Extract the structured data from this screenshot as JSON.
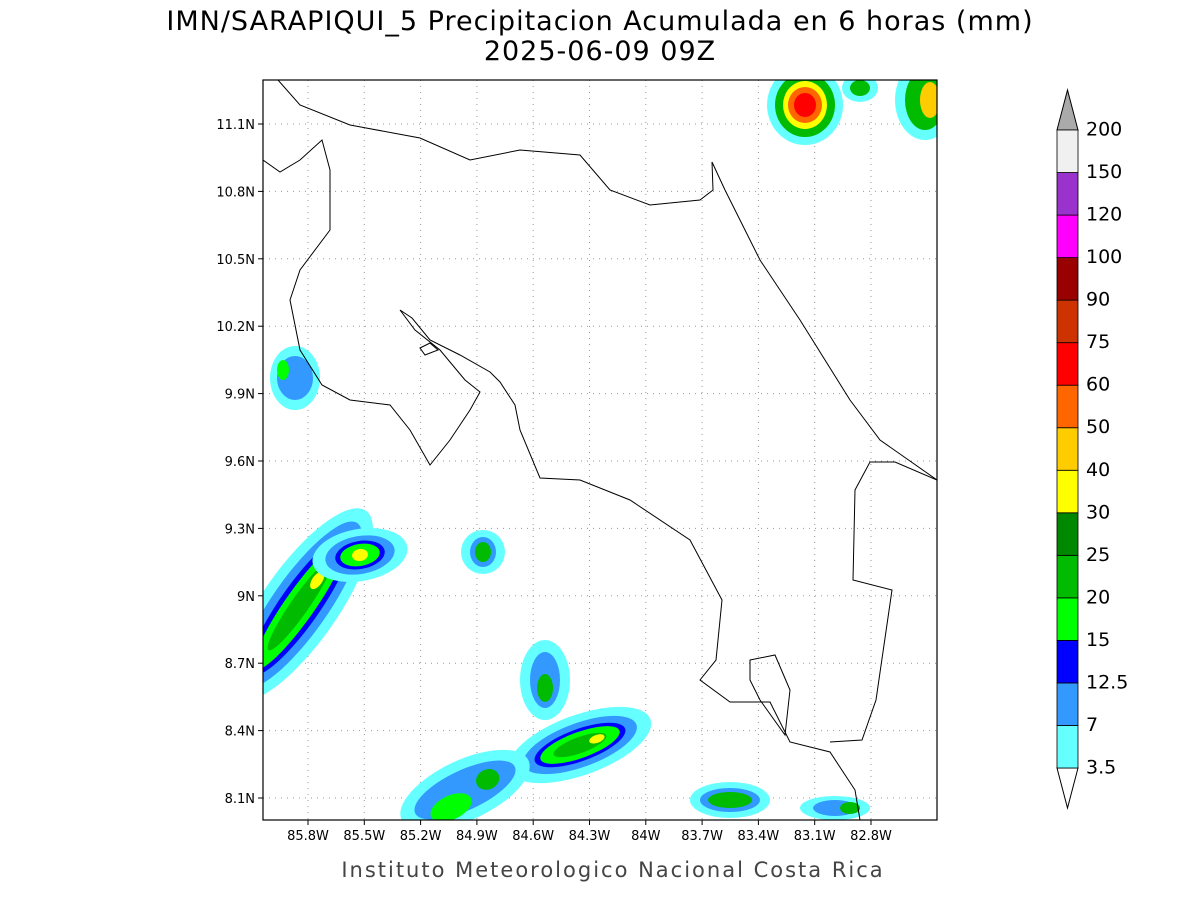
{
  "header": {
    "title": "IMN/SARAPIQUI_5 Precipitacion Acumulada en 6 horas (mm)",
    "subtitle": "2025-06-09 09Z"
  },
  "map": {
    "x_tick_labels": [
      "85.8W",
      "85.5W",
      "85.2W",
      "84.9W",
      "84.6W",
      "84.3W",
      "84W",
      "83.7W",
      "83.4W",
      "83.1W",
      "82.8W"
    ],
    "y_tick_labels": [
      "11.1N",
      "10.8N",
      "10.5N",
      "10.2N",
      "9.9N",
      "9.6N",
      "9.3N",
      "9N",
      "8.7N",
      "8.4N",
      "8.1N"
    ]
  },
  "colorbar": {
    "levels": [
      3.5,
      7,
      12.5,
      15,
      20,
      25,
      30,
      40,
      50,
      60,
      75,
      90,
      100,
      120,
      150,
      200
    ],
    "colors": [
      "#66ffff",
      "#3399ff",
      "#0000ff",
      "#00ff00",
      "#00bb00",
      "#008800",
      "#ffff00",
      "#ffcc00",
      "#ff6600",
      "#ff0000",
      "#cc3300",
      "#990000",
      "#ff00ff",
      "#9933cc",
      "#f0f0f0"
    ]
  },
  "footer": "Instituto Meteorologico Nacional Costa Rica"
}
